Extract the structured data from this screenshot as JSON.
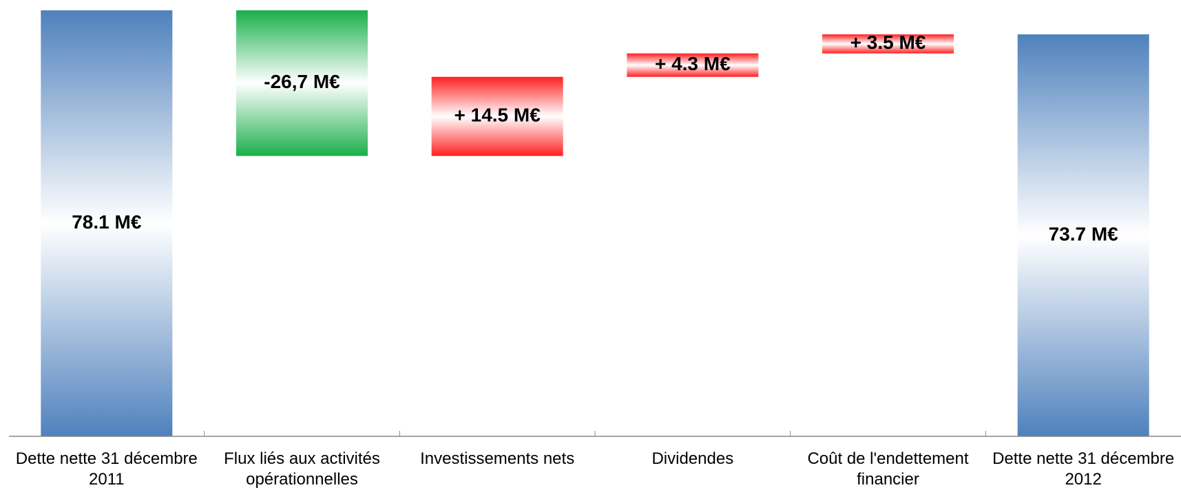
{
  "chart_data": {
    "type": "waterfall",
    "categories": [
      "Dette nette 31 décembre 2011",
      "Flux liés aux activités opérationnelles",
      "Investissements nets",
      "Dividendes",
      "Coût de l'endettement financier",
      "Dette nette 31 décembre 2012"
    ],
    "values": [
      78.1,
      -26.7,
      14.5,
      4.3,
      3.5,
      73.7
    ],
    "value_labels": [
      "78.1 M€",
      "-26,7 M€",
      "+ 14.5 M€",
      "+ 4.3 M€",
      "+ 3.5 M€",
      "73.7 M€"
    ],
    "total_color": "#4f81bd",
    "increase_color": "#ff1f1f",
    "decrease_color": "#1aaf4b",
    "grid": false
  }
}
